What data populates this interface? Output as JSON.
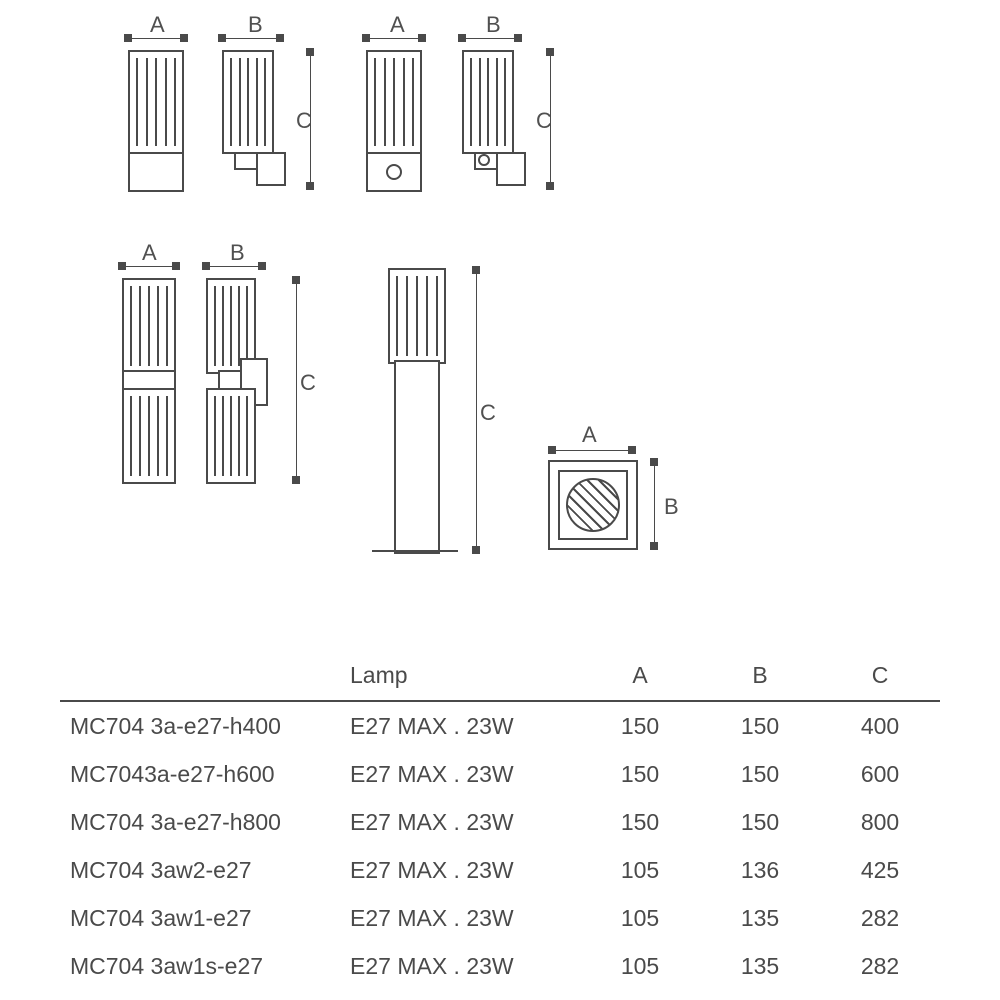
{
  "labels": {
    "A": "A",
    "B": "B",
    "C": "C"
  },
  "table": {
    "header": {
      "model": "",
      "lamp": "Lamp",
      "a": "A",
      "b": "B",
      "c": "C"
    },
    "rows": [
      {
        "model": "MC704 3a-e27-h400",
        "lamp": "E27 MAX . 23W",
        "a": "150",
        "b": "150",
        "c": "400"
      },
      {
        "model": "MC7043a-e27-h600",
        "lamp": "E27 MAX . 23W",
        "a": "150",
        "b": "150",
        "c": "600"
      },
      {
        "model": "MC704 3a-e27-h800",
        "lamp": "E27 MAX . 23W",
        "a": "150",
        "b": "150",
        "c": "800"
      },
      {
        "model": "MC704 3aw2-e27",
        "lamp": "E27 MAX . 23W",
        "a": "105",
        "b": "136",
        "c": "425"
      },
      {
        "model": "MC704 3aw1-e27",
        "lamp": "E27 MAX . 23W",
        "a": "105",
        "b": "135",
        "c": "282"
      },
      {
        "model": "MC704  3aw1s-e27",
        "lamp": "E27 MAX . 23W",
        "a": "105",
        "b": "135",
        "c": "282"
      }
    ]
  },
  "colors": {
    "line": "#4a4a4a",
    "bg": "#ffffff"
  }
}
